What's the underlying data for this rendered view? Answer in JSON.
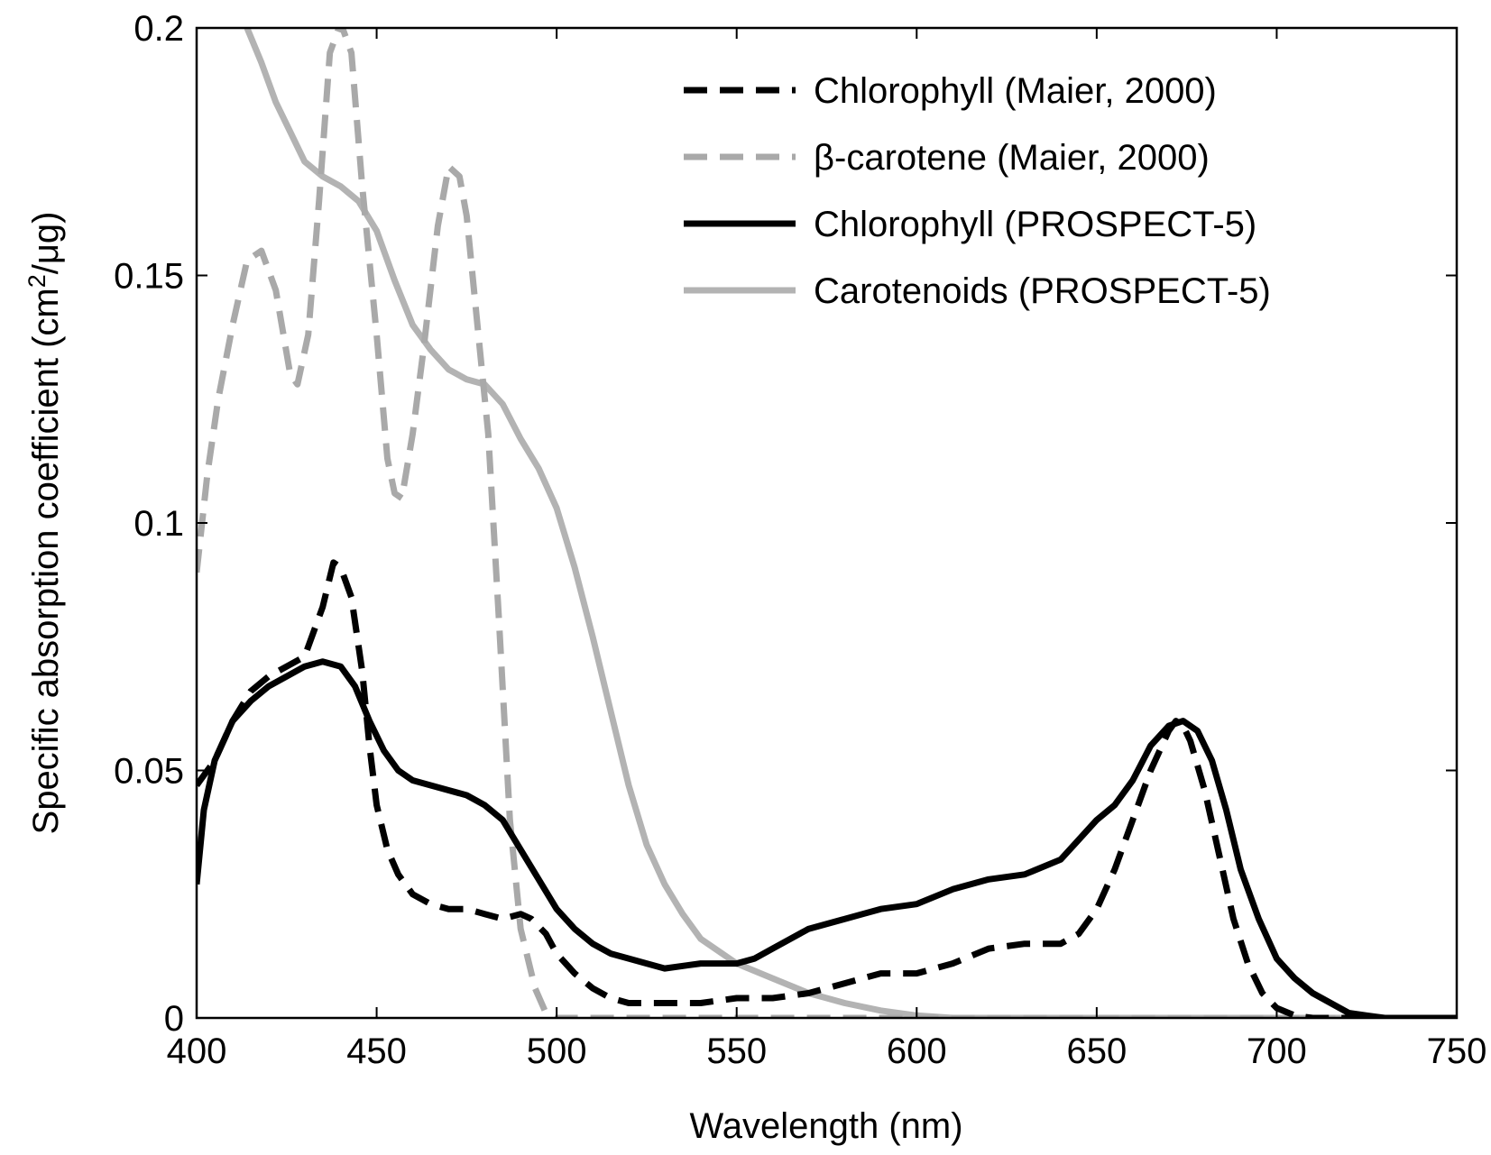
{
  "chart_data": {
    "type": "line",
    "title": "",
    "xlabel": "Wavelength (nm)",
    "ylabel_prefix": "Specific absorption coefficient (cm",
    "ylabel_superscript": "2",
    "ylabel_suffix": "/μg)",
    "xlim": [
      400,
      750
    ],
    "ylim": [
      0,
      0.2
    ],
    "xticks": [
      400,
      450,
      500,
      550,
      600,
      650,
      700,
      750
    ],
    "xtick_labels": [
      "400",
      "450",
      "500",
      "550",
      "600",
      "650",
      "700",
      "750"
    ],
    "yticks": [
      0,
      0.05,
      0.1,
      0.15,
      0.2
    ],
    "ytick_labels": [
      "0",
      "0.05",
      "0.1",
      "0.15",
      "0.2"
    ],
    "grid": false,
    "legend_position": "top-right",
    "series": [
      {
        "name": "Chlorophyll (Maier, 2000)",
        "color": "#000000",
        "style": "dashed",
        "points": [
          [
            400,
            0.047
          ],
          [
            405,
            0.052
          ],
          [
            410,
            0.06
          ],
          [
            415,
            0.066
          ],
          [
            420,
            0.069
          ],
          [
            425,
            0.071
          ],
          [
            430,
            0.073
          ],
          [
            435,
            0.083
          ],
          [
            438,
            0.092
          ],
          [
            440,
            0.091
          ],
          [
            443,
            0.085
          ],
          [
            446,
            0.07
          ],
          [
            448,
            0.055
          ],
          [
            450,
            0.043
          ],
          [
            453,
            0.034
          ],
          [
            456,
            0.029
          ],
          [
            460,
            0.025
          ],
          [
            465,
            0.023
          ],
          [
            470,
            0.022
          ],
          [
            475,
            0.022
          ],
          [
            480,
            0.021
          ],
          [
            485,
            0.02
          ],
          [
            490,
            0.021
          ],
          [
            493,
            0.02
          ],
          [
            497,
            0.017
          ],
          [
            500,
            0.013
          ],
          [
            505,
            0.009
          ],
          [
            510,
            0.006
          ],
          [
            515,
            0.004
          ],
          [
            520,
            0.003
          ],
          [
            530,
            0.003
          ],
          [
            540,
            0.003
          ],
          [
            550,
            0.004
          ],
          [
            560,
            0.004
          ],
          [
            570,
            0.005
          ],
          [
            580,
            0.007
          ],
          [
            590,
            0.009
          ],
          [
            600,
            0.009
          ],
          [
            610,
            0.011
          ],
          [
            620,
            0.014
          ],
          [
            630,
            0.015
          ],
          [
            640,
            0.015
          ],
          [
            645,
            0.017
          ],
          [
            650,
            0.022
          ],
          [
            655,
            0.03
          ],
          [
            660,
            0.04
          ],
          [
            665,
            0.05
          ],
          [
            670,
            0.058
          ],
          [
            672,
            0.06
          ],
          [
            674,
            0.059
          ],
          [
            676,
            0.056
          ],
          [
            680,
            0.046
          ],
          [
            684,
            0.033
          ],
          [
            688,
            0.02
          ],
          [
            692,
            0.011
          ],
          [
            696,
            0.005
          ],
          [
            700,
            0.002
          ],
          [
            705,
            0.0005
          ],
          [
            710,
            0
          ],
          [
            750,
            0
          ]
        ]
      },
      {
        "name": "β-carotene (Maier, 2000)",
        "color": "#a9a9a9",
        "style": "dashed",
        "points": [
          [
            400,
            0.09
          ],
          [
            403,
            0.11
          ],
          [
            406,
            0.125
          ],
          [
            410,
            0.14
          ],
          [
            414,
            0.153
          ],
          [
            418,
            0.155
          ],
          [
            422,
            0.147
          ],
          [
            426,
            0.13
          ],
          [
            428,
            0.128
          ],
          [
            431,
            0.138
          ],
          [
            434,
            0.165
          ],
          [
            437,
            0.195
          ],
          [
            440,
            0.201
          ],
          [
            443,
            0.195
          ],
          [
            446,
            0.168
          ],
          [
            450,
            0.138
          ],
          [
            453,
            0.113
          ],
          [
            455,
            0.106
          ],
          [
            457,
            0.105
          ],
          [
            460,
            0.118
          ],
          [
            463,
            0.135
          ],
          [
            467,
            0.16
          ],
          [
            470,
            0.172
          ],
          [
            473,
            0.17
          ],
          [
            475,
            0.162
          ],
          [
            478,
            0.14
          ],
          [
            481,
            0.118
          ],
          [
            484,
            0.08
          ],
          [
            487,
            0.04
          ],
          [
            490,
            0.018
          ],
          [
            494,
            0.006
          ],
          [
            497,
            0.001
          ],
          [
            500,
            0
          ],
          [
            750,
            0
          ]
        ]
      },
      {
        "name": "Chlorophyll (PROSPECT-5)",
        "color": "#000000",
        "style": "solid",
        "points": [
          [
            400,
            0.027
          ],
          [
            402,
            0.042
          ],
          [
            405,
            0.052
          ],
          [
            410,
            0.06
          ],
          [
            415,
            0.064
          ],
          [
            420,
            0.067
          ],
          [
            425,
            0.069
          ],
          [
            430,
            0.071
          ],
          [
            435,
            0.072
          ],
          [
            440,
            0.071
          ],
          [
            444,
            0.067
          ],
          [
            448,
            0.06
          ],
          [
            452,
            0.054
          ],
          [
            456,
            0.05
          ],
          [
            460,
            0.048
          ],
          [
            465,
            0.047
          ],
          [
            470,
            0.046
          ],
          [
            475,
            0.045
          ],
          [
            480,
            0.043
          ],
          [
            485,
            0.04
          ],
          [
            490,
            0.034
          ],
          [
            495,
            0.028
          ],
          [
            500,
            0.022
          ],
          [
            505,
            0.018
          ],
          [
            510,
            0.015
          ],
          [
            515,
            0.013
          ],
          [
            520,
            0.012
          ],
          [
            525,
            0.011
          ],
          [
            530,
            0.01
          ],
          [
            540,
            0.011
          ],
          [
            550,
            0.011
          ],
          [
            555,
            0.012
          ],
          [
            560,
            0.014
          ],
          [
            570,
            0.018
          ],
          [
            580,
            0.02
          ],
          [
            590,
            0.022
          ],
          [
            600,
            0.023
          ],
          [
            610,
            0.026
          ],
          [
            620,
            0.028
          ],
          [
            630,
            0.029
          ],
          [
            640,
            0.032
          ],
          [
            645,
            0.036
          ],
          [
            650,
            0.04
          ],
          [
            655,
            0.043
          ],
          [
            660,
            0.048
          ],
          [
            665,
            0.055
          ],
          [
            670,
            0.059
          ],
          [
            674,
            0.06
          ],
          [
            678,
            0.058
          ],
          [
            682,
            0.052
          ],
          [
            686,
            0.042
          ],
          [
            690,
            0.03
          ],
          [
            695,
            0.02
          ],
          [
            700,
            0.012
          ],
          [
            705,
            0.008
          ],
          [
            710,
            0.005
          ],
          [
            715,
            0.003
          ],
          [
            720,
            0.001
          ],
          [
            725,
            0.0005
          ],
          [
            730,
            0
          ],
          [
            750,
            0
          ]
        ]
      },
      {
        "name": "Carotenoids (PROSPECT-5)",
        "color": "#b3b3b3",
        "style": "solid",
        "points": [
          [
            414,
            0.2
          ],
          [
            418,
            0.193
          ],
          [
            422,
            0.185
          ],
          [
            426,
            0.179
          ],
          [
            430,
            0.173
          ],
          [
            435,
            0.17
          ],
          [
            440,
            0.168
          ],
          [
            445,
            0.165
          ],
          [
            450,
            0.159
          ],
          [
            455,
            0.149
          ],
          [
            460,
            0.14
          ],
          [
            465,
            0.135
          ],
          [
            470,
            0.131
          ],
          [
            475,
            0.129
          ],
          [
            480,
            0.128
          ],
          [
            485,
            0.124
          ],
          [
            490,
            0.117
          ],
          [
            495,
            0.111
          ],
          [
            500,
            0.103
          ],
          [
            505,
            0.091
          ],
          [
            510,
            0.077
          ],
          [
            515,
            0.062
          ],
          [
            520,
            0.047
          ],
          [
            525,
            0.035
          ],
          [
            530,
            0.027
          ],
          [
            535,
            0.021
          ],
          [
            540,
            0.016
          ],
          [
            550,
            0.011
          ],
          [
            560,
            0.008
          ],
          [
            570,
            0.005
          ],
          [
            580,
            0.003
          ],
          [
            590,
            0.0015
          ],
          [
            600,
            0.0005
          ],
          [
            610,
            0
          ],
          [
            750,
            0
          ]
        ]
      }
    ]
  }
}
